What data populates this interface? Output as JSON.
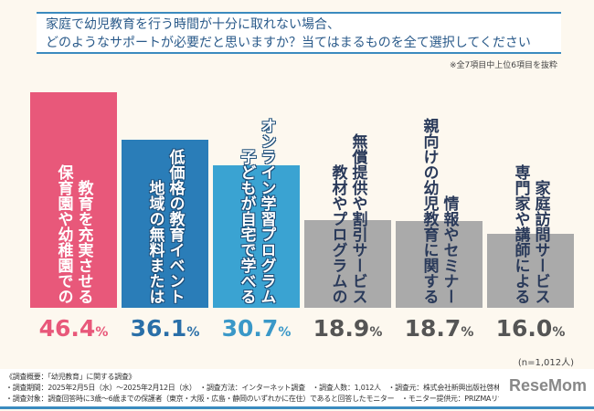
{
  "title": {
    "line1": "家庭で幼児教育を行う時間が十分に取れない場合、",
    "line2": "どのようなサポートが必要だと思いますか？当てはまるものを全て選択してください"
  },
  "note": "※全7項目中上位6項目を抜粋",
  "sample": "(n=1,012人)",
  "chart_data": {
    "type": "bar",
    "unit": "%",
    "ylim": [
      0,
      50
    ],
    "categories": [
      [
        "保育園や幼稚園での",
        "教育を充実させる"
      ],
      [
        "地域の無料または",
        "低価格の教育イベント"
      ],
      [
        "子どもが自宅で学べる",
        "オンライン学習プログラム"
      ],
      [
        "教材やプログラムの",
        "無償提供や割引サービス"
      ],
      [
        "親向けの幼児教育に関する",
        "情報やセミナー"
      ],
      [
        "専門家や講師による",
        "家庭訪問サービス"
      ]
    ],
    "values": [
      46.4,
      36.1,
      30.7,
      18.9,
      18.7,
      16.0
    ],
    "labels": [
      "46.4",
      "36.1",
      "30.7",
      "18.9",
      "18.7",
      "16.0"
    ],
    "colors": [
      "#e8587a",
      "#2a7db8",
      "#3aa3d2",
      "#aaaaaa",
      "#aaaaaa",
      "#aaaaaa"
    ],
    "label_colors": [
      "#e8587a",
      "#2a6fa8",
      "#3a98c8",
      "#555555",
      "#555555",
      "#555555"
    ]
  },
  "footer": {
    "line1": "《調査概要：「幼児教育」に関する調査》",
    "line2": "・調査期間：2025年2月5日（水）～2025年2月12日（水）　・調査方法：インターネット調査　・調査人数：1,012人　・調査元：株式会社新興出版社啓林館",
    "line3": "・調査対象：調査回答時に3歳～6歳までの保護者（東京・大阪・広島・静岡のいずれかに在住）であると回答したモニター　・モニター提供元：PRIZMAリサーチ"
  },
  "logo": "ReseMom"
}
